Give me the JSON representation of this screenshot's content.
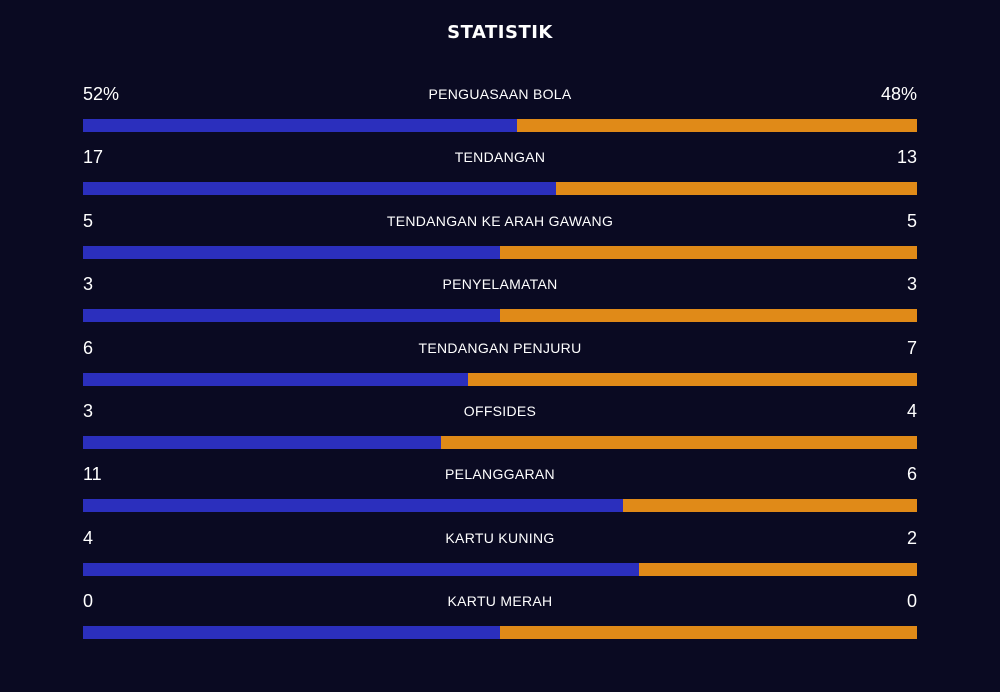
{
  "title": "STATISTIK",
  "colors": {
    "background": "#0a0a22",
    "home": "#2b2fbd",
    "away": "#e08a18"
  },
  "stats": [
    {
      "label": "PENGUASAAN BOLA",
      "home": "52%",
      "away": "48%",
      "home_share": 0.52
    },
    {
      "label": "TENDANGAN",
      "home": "17",
      "away": "13",
      "home_share": 0.567
    },
    {
      "label": "TENDANGAN KE ARAH GAWANG",
      "home": "5",
      "away": "5",
      "home_share": 0.5
    },
    {
      "label": "PENYELAMATAN",
      "home": "3",
      "away": "3",
      "home_share": 0.5
    },
    {
      "label": "TENDANGAN PENJURU",
      "home": "6",
      "away": "7",
      "home_share": 0.462
    },
    {
      "label": "OFFSIDES",
      "home": "3",
      "away": "4",
      "home_share": 0.429
    },
    {
      "label": "PELANGGARAN",
      "home": "11",
      "away": "6",
      "home_share": 0.647
    },
    {
      "label": "KARTU KUNING",
      "home": "4",
      "away": "2",
      "home_share": 0.667
    },
    {
      "label": "KARTU MERAH",
      "home": "0",
      "away": "0",
      "home_share": 0.5
    }
  ]
}
